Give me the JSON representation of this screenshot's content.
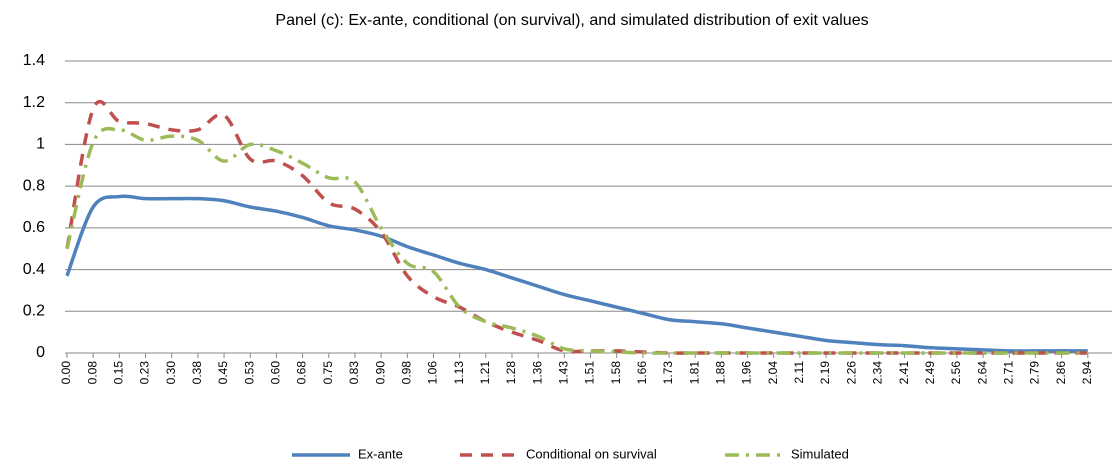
{
  "chart_data": {
    "type": "line",
    "title": "Panel (c): Ex-ante, conditional (on survival), and simulated distribution of exit values",
    "categories": [
      "0.00",
      "0.08",
      "0.15",
      "0.23",
      "0.30",
      "0.38",
      "0.45",
      "0.53",
      "0.60",
      "0.68",
      "0.75",
      "0.83",
      "0.90",
      "0.98",
      "1.06",
      "1.13",
      "1.21",
      "1.28",
      "1.36",
      "1.43",
      "1.51",
      "1.58",
      "1.66",
      "1.73",
      "1.81",
      "1.88",
      "1.96",
      "2.04",
      "2.11",
      "2.19",
      "2.26",
      "2.34",
      "2.41",
      "2.49",
      "2.56",
      "2.64",
      "2.71",
      "2.79",
      "2.86",
      "2.94"
    ],
    "series": [
      {
        "name": "Ex-ante",
        "color": "#4f81bd",
        "dash": "solid",
        "values": [
          0.37,
          0.7,
          0.75,
          0.74,
          0.74,
          0.74,
          0.73,
          0.7,
          0.68,
          0.65,
          0.61,
          0.59,
          0.56,
          0.51,
          0.47,
          0.43,
          0.4,
          0.36,
          0.32,
          0.28,
          0.25,
          0.22,
          0.19,
          0.16,
          0.15,
          0.14,
          0.12,
          0.1,
          0.08,
          0.06,
          0.05,
          0.04,
          0.035,
          0.025,
          0.02,
          0.015,
          0.01,
          0.01,
          0.01,
          0.01
        ]
      },
      {
        "name": "Conditional on survival",
        "color": "#c0504d",
        "dash": "dash",
        "values": [
          0.5,
          1.17,
          1.11,
          1.1,
          1.07,
          1.07,
          1.14,
          0.93,
          0.92,
          0.85,
          0.72,
          0.69,
          0.58,
          0.37,
          0.27,
          0.22,
          0.15,
          0.1,
          0.06,
          0.01,
          0.01,
          0.01,
          0.005,
          0,
          0,
          0,
          0,
          0,
          0,
          0,
          0,
          0,
          0,
          0,
          0,
          0,
          0,
          0,
          0,
          0
        ]
      },
      {
        "name": "Simulated",
        "color": "#9bbb59",
        "dash": "dashdot",
        "values": [
          0.5,
          1.01,
          1.07,
          1.02,
          1.04,
          1.02,
          0.92,
          1.0,
          0.97,
          0.91,
          0.84,
          0.82,
          0.6,
          0.43,
          0.39,
          0.22,
          0.15,
          0.12,
          0.08,
          0.02,
          0.01,
          0.005,
          0,
          0,
          0,
          0,
          0,
          0,
          0,
          0,
          0,
          0,
          0,
          0,
          0,
          0,
          0,
          0,
          0,
          0
        ]
      }
    ],
    "ylim": [
      0,
      1.4
    ],
    "yticks": [
      0,
      0.2,
      0.4,
      0.6,
      0.8,
      1,
      1.2,
      1.4
    ],
    "grid": true,
    "legend": "bottom"
  }
}
